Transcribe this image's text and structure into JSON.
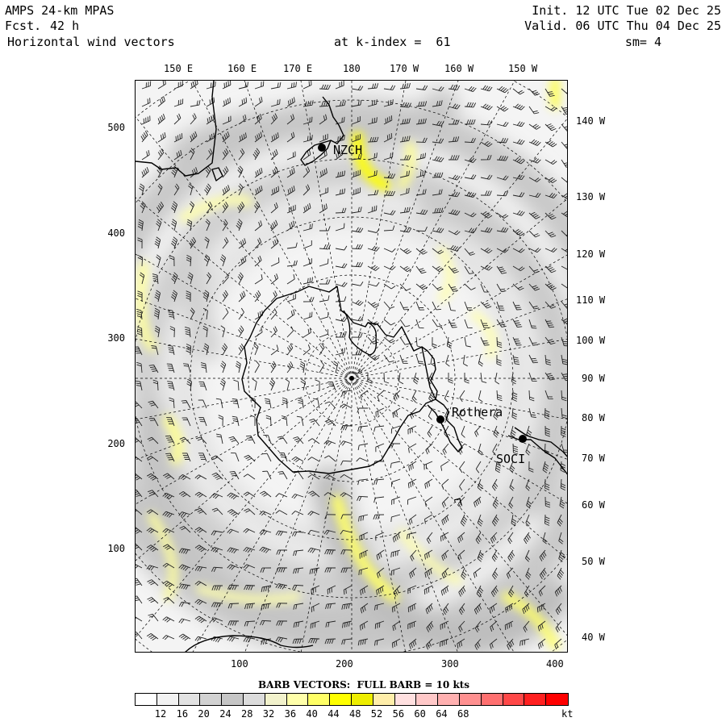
{
  "header": {
    "model": "AMPS 24-km MPAS",
    "fcst_label": "Fcst.",
    "fcst_value": "42 h",
    "field": "Horizontal wind vectors",
    "level": "at k-index =  61",
    "init": "Init. 12 UTC Tue 02 Dec 25",
    "valid": "Valid. 06 UTC Thu 04 Dec 25",
    "smoothing": "sm= 4"
  },
  "top_longitudes": [
    "150 E",
    "160 E",
    "170 E",
    "180",
    "170 W",
    "160 W",
    "150 W"
  ],
  "right_longitudes": [
    "140 W",
    "130 W",
    "120 W",
    "110 W",
    "100 W",
    "90 W",
    "80 W",
    "70 W",
    "60 W",
    "50 W",
    "40 W"
  ],
  "y_ticks": [
    "500",
    "400",
    "300",
    "200",
    "100"
  ],
  "x_ticks": [
    "100",
    "200",
    "300",
    "400"
  ],
  "stations": [
    {
      "name": "NZCH",
      "icon": "station-dot-icon"
    },
    {
      "name": "Rothera",
      "icon": "station-dot-icon"
    },
    {
      "name": "SOCI",
      "icon": "station-dot-icon"
    }
  ],
  "legend": {
    "title": "BARB VECTORS:  FULL BARB = 10 kts",
    "unit": "kt",
    "labels": [
      "12",
      "16",
      "20",
      "24",
      "28",
      "32",
      "36",
      "40",
      "44",
      "48",
      "52",
      "56",
      "60",
      "64",
      "68"
    ],
    "colors": [
      "#ffffff",
      "#f2f2f2",
      "#e2e2e2",
      "#d2d2d2",
      "#c6c6c6",
      "#dcdcdc",
      "#f2f2cc",
      "#ffffaa",
      "#ffff66",
      "#ffff00",
      "#eeee00",
      "#ffeeaa",
      "#ffe0e0",
      "#ffc8c8",
      "#ffb0b0",
      "#ff9090",
      "#ff7070",
      "#ff4848",
      "#ff2020",
      "#ff0000"
    ]
  }
}
